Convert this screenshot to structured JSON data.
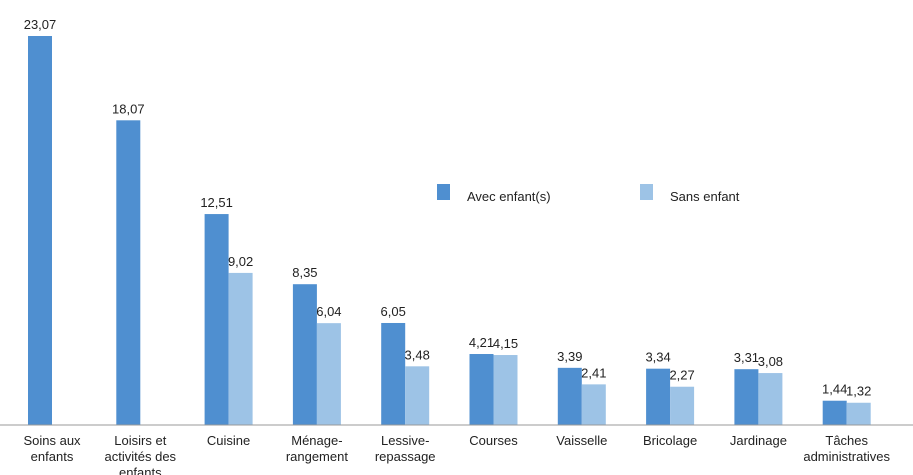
{
  "chart_data": {
    "type": "bar",
    "categories": [
      "Soins aux enfants",
      "Loisirs et activités des enfants",
      "Cuisine",
      "Ménage-rangement",
      "Lessive-repassage",
      "Courses",
      "Vaisselle",
      "Bricolage",
      "Jardinage",
      "Tâches administratives"
    ],
    "series": [
      {
        "name": "Avec enfant(s)",
        "color": "#4f8fd0",
        "values": [
          23.07,
          18.07,
          12.51,
          8.35,
          6.05,
          4.21,
          3.39,
          3.34,
          3.31,
          1.44
        ],
        "value_labels": [
          "23,07",
          "18,07",
          "12,51",
          "8,35",
          "6,05",
          "4,21",
          "3,39",
          "3,34",
          "3,31",
          "1,44"
        ]
      },
      {
        "name": "Sans enfant",
        "color": "#9dc3e6",
        "values": [
          null,
          null,
          9.02,
          6.04,
          3.48,
          4.15,
          2.41,
          2.27,
          3.08,
          1.32
        ],
        "value_labels": [
          null,
          null,
          "9,02",
          "6,04",
          "3,48",
          "4,15",
          "2,41",
          "2,27",
          "3,08",
          "1,32"
        ]
      }
    ]
  }
}
